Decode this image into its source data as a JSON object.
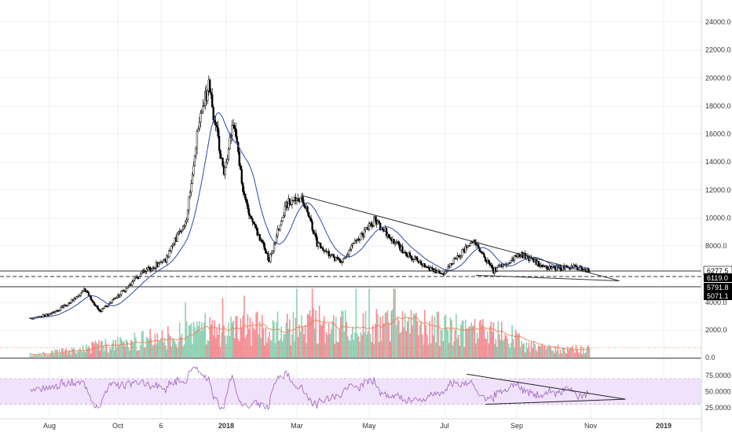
{
  "colors": {
    "up": "#ffffff",
    "down": "#000000",
    "ma": "#2b4aa8",
    "trendline": "#333333",
    "vol_up": "#8fd1b4",
    "vol_down": "#f48f96",
    "vol_ma": "#f07a4a",
    "rsi_line": "#9c5fb8",
    "rsi_band": "#f0e2fa"
  },
  "chart_data": [
    {
      "type": "candlestick",
      "title": "",
      "y_axis": {
        "ticks": [
          "24000.0",
          "22000.0",
          "20000.0",
          "18000.0",
          "16000.0",
          "14000.0",
          "12000.0",
          "10000.0",
          "8000.0",
          "4000.0",
          "2000.0",
          "0.0"
        ],
        "range_visible": [
          0,
          25000
        ]
      },
      "x_axis": {
        "ticks": [
          "Aug",
          "Oct",
          "6",
          "2018",
          "Mar",
          "May",
          "Jul",
          "Sep",
          "Nov",
          "2019"
        ],
        "bold_ticks": [
          "2018",
          "2019"
        ]
      },
      "price_series": {
        "key_points": [
          {
            "date": "2017-07-20",
            "close": 2800
          },
          {
            "date": "2017-08-05",
            "close": 3200
          },
          {
            "date": "2017-08-25",
            "close": 4300
          },
          {
            "date": "2017-09-01",
            "close": 4900
          },
          {
            "date": "2017-09-15",
            "close": 3300
          },
          {
            "date": "2017-09-30",
            "close": 4300
          },
          {
            "date": "2017-10-20",
            "close": 6000
          },
          {
            "date": "2017-11-10",
            "close": 7000
          },
          {
            "date": "2017-11-28",
            "close": 10000
          },
          {
            "date": "2017-12-08",
            "close": 16500
          },
          {
            "date": "2017-12-17",
            "close": 19500
          },
          {
            "date": "2017-12-30",
            "close": 13000
          },
          {
            "date": "2018-01-07",
            "close": 17000
          },
          {
            "date": "2018-01-17",
            "close": 11000
          },
          {
            "date": "2018-02-06",
            "close": 6900
          },
          {
            "date": "2018-02-20",
            "close": 11000
          },
          {
            "date": "2018-03-05",
            "close": 11500
          },
          {
            "date": "2018-03-18",
            "close": 8200
          },
          {
            "date": "2018-04-06",
            "close": 6800
          },
          {
            "date": "2018-05-05",
            "close": 9800
          },
          {
            "date": "2018-05-31",
            "close": 7500
          },
          {
            "date": "2018-06-28",
            "close": 5900
          },
          {
            "date": "2018-07-25",
            "close": 8400
          },
          {
            "date": "2018-08-12",
            "close": 6200
          },
          {
            "date": "2018-09-05",
            "close": 7400
          },
          {
            "date": "2018-09-25",
            "close": 6400
          },
          {
            "date": "2018-10-15",
            "close": 6500
          },
          {
            "date": "2018-10-31",
            "close": 6300
          }
        ]
      },
      "trendlines": [
        {
          "from": {
            "date": "2018-03-05",
            "price": 11600
          },
          "to": {
            "date": "2018-11-25",
            "price": 5500
          }
        },
        {
          "from": {
            "date": "2018-07-28",
            "price": 5900
          },
          "to": {
            "date": "2018-11-25",
            "price": 5500
          }
        }
      ],
      "horizontal_levels": [
        {
          "value": 6277.5,
          "label": "6277.5",
          "style": "solid"
        },
        {
          "value": 6119.0,
          "label": "6119.0",
          "style": "dashed"
        },
        {
          "value": 5791.8,
          "label": "5791.8",
          "style": "solid"
        },
        {
          "value": 5071.1,
          "label": "5071.1",
          "style": "solid"
        }
      ]
    },
    {
      "type": "bar",
      "title": "",
      "series_label": "",
      "y_axis": {
        "ticks": [
          "4000.0",
          "2000.0",
          "0.0"
        ],
        "range": [
          0,
          5200
        ]
      },
      "moving_average_visible": true,
      "last_value_dotted_level": 700
    },
    {
      "type": "line",
      "title": "",
      "y_axis": {
        "ticks": [
          "75.0000",
          "50.0000",
          "25.0000"
        ],
        "range": [
          10,
          100
        ]
      },
      "band": [
        30,
        70
      ],
      "trendlines": [
        {
          "from": {
            "date": "2018-07-20",
            "value": 77
          },
          "to": {
            "date": "2018-11-30",
            "value": 38
          }
        },
        {
          "from": {
            "date": "2018-08-05",
            "value": 30
          },
          "to": {
            "date": "2018-11-30",
            "value": 38
          }
        }
      ]
    }
  ]
}
